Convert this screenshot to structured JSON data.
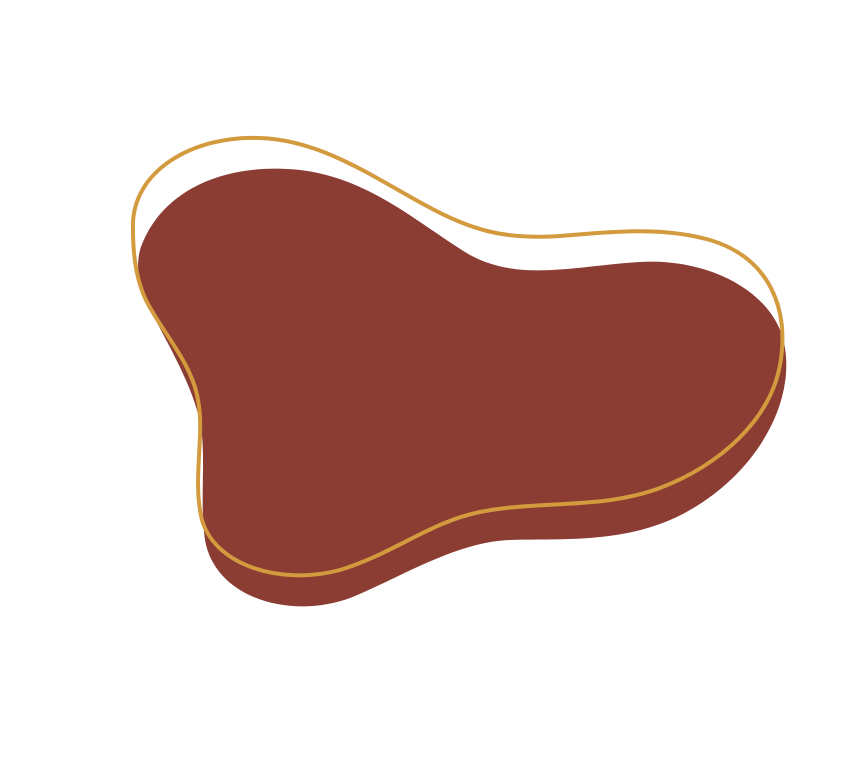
{
  "colors": {
    "background": "#ffffff",
    "blob_fill": "#8b3c33",
    "outline_stroke": "#d39a3e"
  },
  "shapes": {
    "filled_blob": "filled-organic-blob",
    "outline_blob": "outline-organic-blob"
  }
}
